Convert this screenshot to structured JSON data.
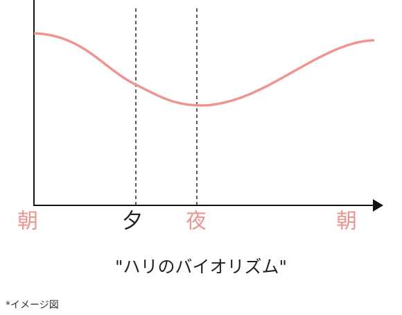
{
  "axis_labels": [
    "朝",
    "夕",
    "夜",
    "朝"
  ],
  "caption": "\"ハリのバイオリズム\"",
  "note": "*イメージ図"
}
